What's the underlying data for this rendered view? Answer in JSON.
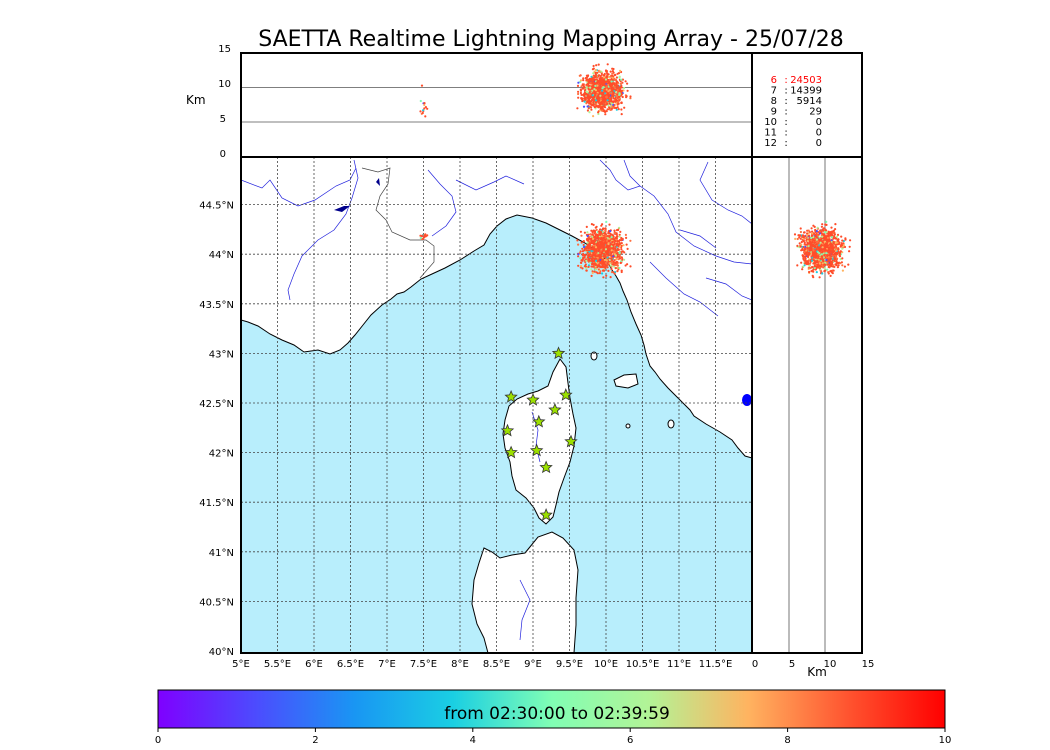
{
  "title": "SAETTA Realtime Lightning Mapping Array - 25/07/28",
  "altitude_panel": {
    "ylabel": "Km",
    "yticks": [
      "15",
      "10",
      "5",
      "0"
    ],
    "stats": [
      {
        "key": "6",
        "value": "24503",
        "color": "#ff0000"
      },
      {
        "key": "7",
        "value": "14399",
        "color": "#000000"
      },
      {
        "key": "8",
        "value": "5914",
        "color": "#000000"
      },
      {
        "key": "9",
        "value": "29",
        "color": "#000000"
      },
      {
        "key": "10",
        "value": "0",
        "color": "#000000"
      },
      {
        "key": "11",
        "value": "0",
        "color": "#000000"
      },
      {
        "key": "12",
        "value": "0",
        "color": "#000000"
      }
    ]
  },
  "map": {
    "lon_ticks": [
      "5°E",
      "5.5°E",
      "6°E",
      "6.5°E",
      "7°E",
      "7.5°E",
      "8°E",
      "8.5°E",
      "9°E",
      "9.5°E",
      "10°E",
      "10.5°E",
      "11°E",
      "11.5°E"
    ],
    "lat_ticks": [
      "44.5°N",
      "44°N",
      "43.5°N",
      "43°N",
      "42.5°N",
      "42°N",
      "41.5°N",
      "41°N",
      "40.5°N",
      "40°N"
    ],
    "sea_color": "#b8eefc",
    "land_color": "#ffffff",
    "river_color": "#2222dd",
    "station_color": "#9be000",
    "stations": [
      {
        "lon": 9.35,
        "lat": 43.0
      },
      {
        "lon": 8.7,
        "lat": 42.56
      },
      {
        "lon": 9.0,
        "lat": 42.53
      },
      {
        "lon": 9.45,
        "lat": 42.58
      },
      {
        "lon": 9.3,
        "lat": 42.43
      },
      {
        "lon": 9.08,
        "lat": 42.31
      },
      {
        "lon": 8.65,
        "lat": 42.22
      },
      {
        "lon": 9.52,
        "lat": 42.11
      },
      {
        "lon": 8.7,
        "lat": 42.0
      },
      {
        "lon": 9.05,
        "lat": 42.02
      },
      {
        "lon": 9.18,
        "lat": 41.85
      },
      {
        "lon": 9.18,
        "lat": 41.37
      }
    ]
  },
  "side_panel": {
    "xticks": [
      "0",
      "5",
      "10",
      "15"
    ],
    "xlabel": "Km"
  },
  "colorbar": {
    "label": "from 02:30:00 to 02:39:59",
    "ticks": [
      "0",
      "2",
      "4",
      "6",
      "8",
      "10"
    ],
    "colormap": "rainbow"
  },
  "chart_data": {
    "type": "scatter",
    "title": "SAETTA Realtime Lightning Mapping Array - 25/07/28",
    "x_range_lon": [
      5,
      12
    ],
    "y_range_lat": [
      40,
      45
    ],
    "altitude_range_km": [
      0,
      15
    ],
    "grid": true,
    "color_scale_minutes": [
      0,
      10
    ],
    "clusters": [
      {
        "lon_center": 9.95,
        "lat_center": 44.05,
        "lon_spread": 0.22,
        "lat_spread": 0.17,
        "alt_center_km": 9.5,
        "alt_spread_km": 2.2,
        "count_share": 0.92
      },
      {
        "lon_center": 7.5,
        "lat_center": 44.18,
        "lon_spread": 0.04,
        "lat_spread": 0.02,
        "alt_center_km": 7.0,
        "alt_spread_km": 2.5,
        "count_share": 0.01
      }
    ]
  }
}
